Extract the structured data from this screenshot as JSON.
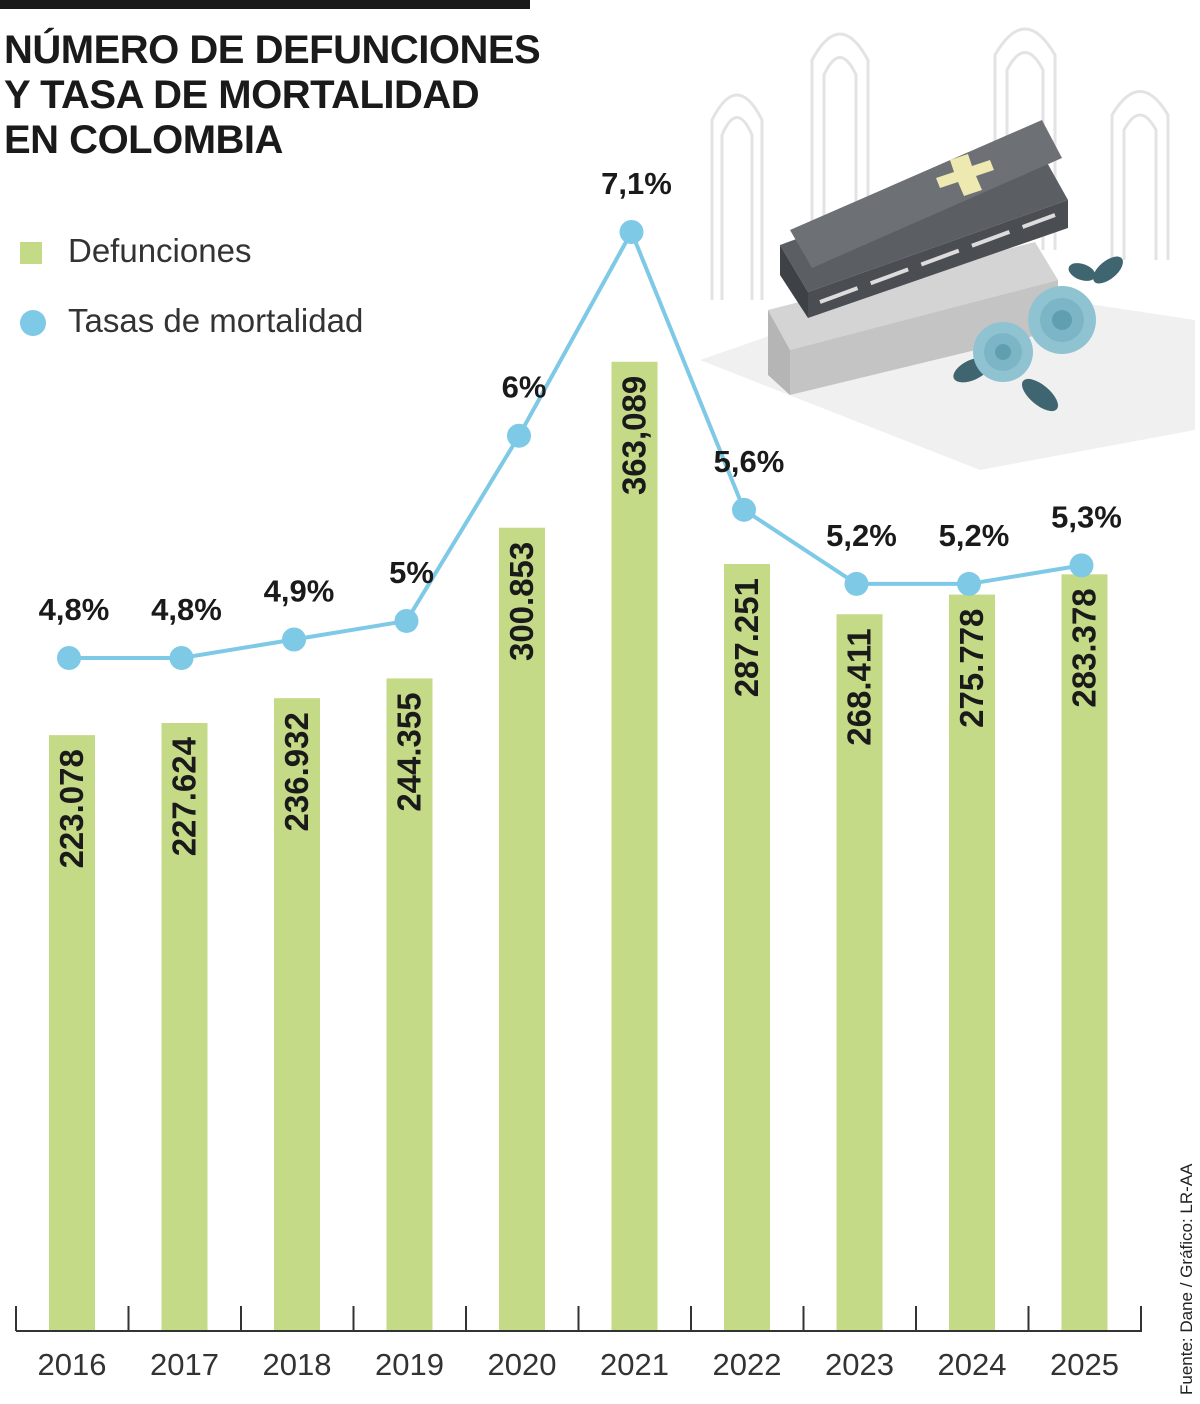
{
  "title_lines": [
    "NÚMERO DE DEFUNCIONES",
    "Y TASA DE MORTALIDAD",
    "EN COLOMBIA"
  ],
  "source": "Fuente: Dane / Gráfico: LR-AA",
  "colors": {
    "bar": "#c5da87",
    "line": "#7ec9e6",
    "text": "#1a1a1a"
  },
  "illustration": {
    "name": "coffin-with-roses-illustration",
    "elements": [
      "gothic-windows",
      "coffin",
      "cross",
      "blue-roses"
    ]
  },
  "chart_data": {
    "type": "bar",
    "categories": [
      "2016",
      "2017",
      "2018",
      "2019",
      "2020",
      "2021",
      "2022",
      "2023",
      "2024",
      "2025"
    ],
    "series": [
      {
        "name": "Defunciones",
        "type": "bar",
        "values": [
          223078,
          227624,
          236932,
          244355,
          300853,
          363089,
          287251,
          268411,
          275778,
          283378
        ],
        "labels": [
          "223.078",
          "227.624",
          "236.932",
          "244.355",
          "300.853",
          "363,089",
          "287.251",
          "268.411",
          "275.778",
          "283.378"
        ]
      },
      {
        "name": "Tasas de mortalidad",
        "type": "line",
        "values": [
          4.8,
          4.8,
          4.9,
          5.0,
          6.0,
          7.1,
          5.6,
          5.2,
          5.2,
          5.3
        ],
        "labels": [
          "4,8%",
          "4,8%",
          "4,9%",
          "5%",
          "6%",
          "7,1%",
          "5,6%",
          "5,2%",
          "5,2%",
          "5,3%"
        ]
      }
    ],
    "bar_ylim": [
      0,
      375000
    ],
    "line_ylim": [
      1.7,
      7.55
    ],
    "legend": "top-left",
    "grid": false
  }
}
